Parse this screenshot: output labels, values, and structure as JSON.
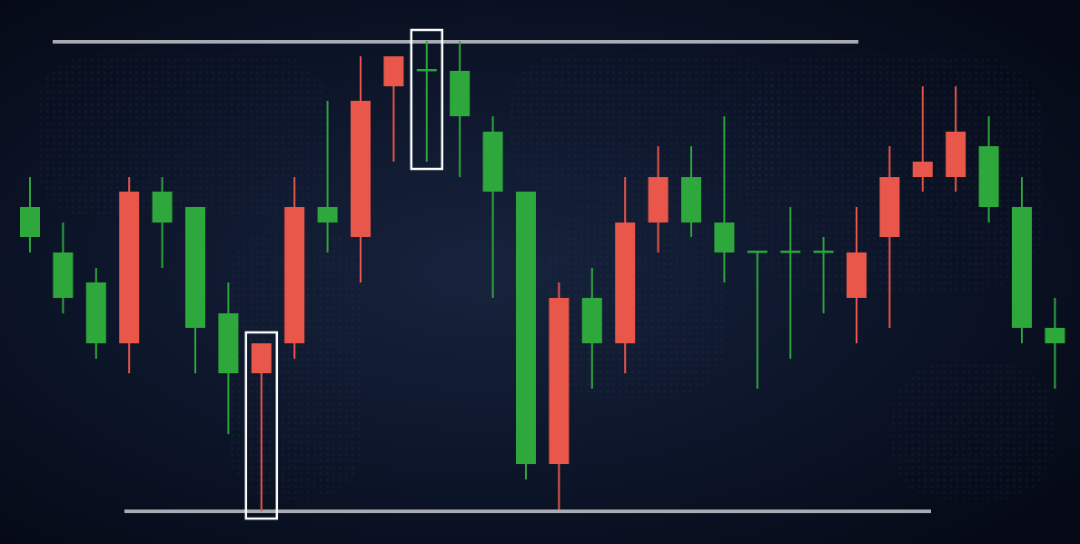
{
  "chart_data": {
    "type": "candlestick",
    "up_color": "#2ea83c",
    "down_color": "#e8574a",
    "ylim": [
      0,
      600
    ],
    "levels": [
      554,
      37
    ],
    "level_color": "#a9abb3",
    "open": [
      339,
      272,
      222,
      389,
      355,
      239,
      189,
      222,
      372,
      355,
      489,
      538,
      522,
      472,
      389,
      89,
      272,
      222,
      355,
      405,
      355,
      322,
      323,
      323,
      323,
      322,
      405,
      422,
      455,
      372,
      239,
      222
    ],
    "high": [
      405,
      355,
      305,
      405,
      405,
      372,
      289,
      222,
      405,
      489,
      538,
      538,
      555,
      555,
      472,
      389,
      289,
      305,
      405,
      439,
      439,
      472,
      324,
      372,
      339,
      372,
      439,
      505,
      505,
      472,
      405,
      272
    ],
    "low": [
      322,
      255,
      205,
      189,
      305,
      189,
      122,
      37,
      205,
      322,
      289,
      422,
      422,
      405,
      272,
      72,
      39,
      172,
      189,
      322,
      339,
      289,
      172,
      205,
      255,
      222,
      239,
      389,
      389,
      355,
      222,
      172
    ],
    "close": [
      372,
      322,
      289,
      222,
      389,
      372,
      255,
      189,
      222,
      372,
      339,
      505,
      524,
      522,
      455,
      389,
      89,
      272,
      222,
      355,
      405,
      355,
      324,
      324,
      324,
      272,
      339,
      405,
      405,
      439,
      372,
      239
    ]
  }
}
